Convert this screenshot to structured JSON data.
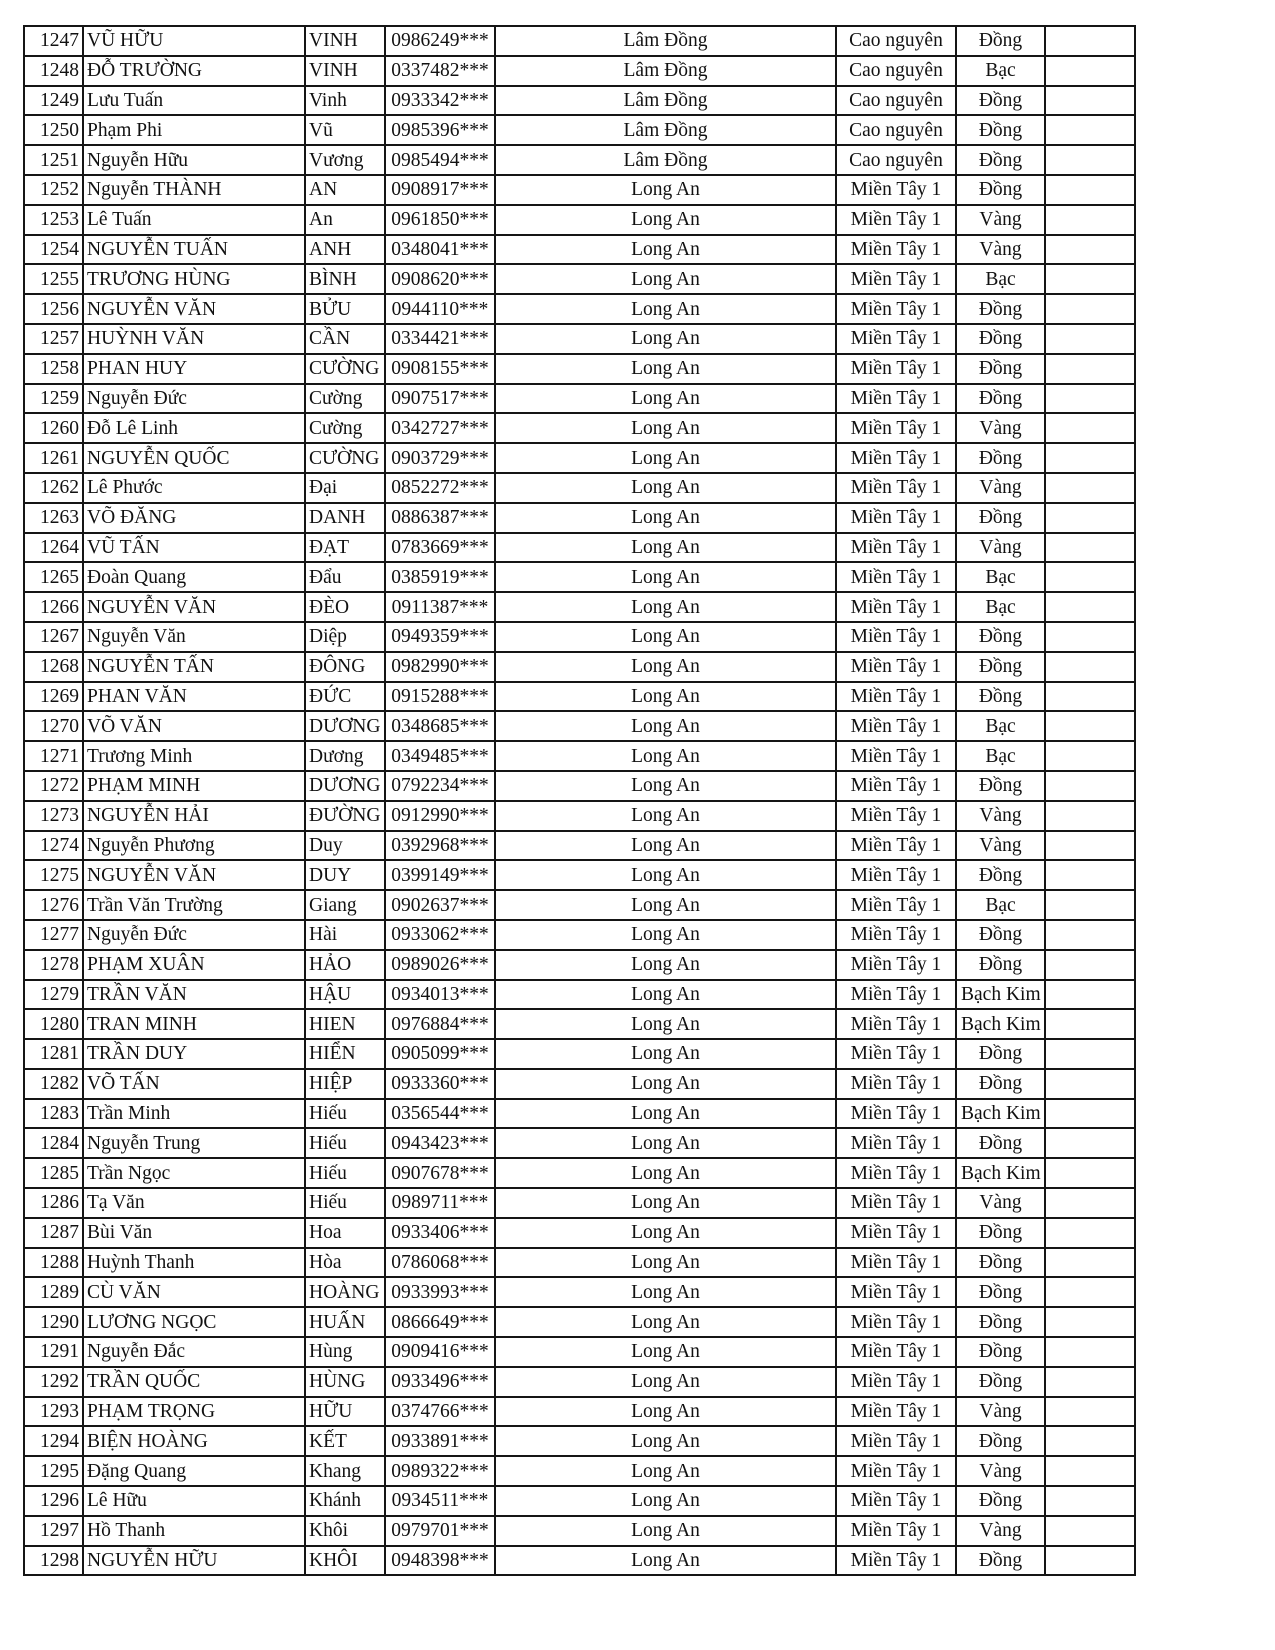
{
  "rows": [
    [
      "1247",
      "VŨ HỮU",
      "VINH",
      "0986249***",
      "Lâm Đồng",
      "Cao nguyên",
      "Đồng",
      ""
    ],
    [
      "1248",
      "ĐỖ TRƯỜNG",
      "VINH",
      "0337482***",
      "Lâm Đồng",
      "Cao nguyên",
      "Bạc",
      ""
    ],
    [
      "1249",
      "Lưu Tuấn",
      "Vinh",
      "0933342***",
      "Lâm Đồng",
      "Cao nguyên",
      "Đồng",
      ""
    ],
    [
      "1250",
      "Phạm Phi",
      "Vũ",
      "0985396***",
      "Lâm Đồng",
      "Cao nguyên",
      "Đồng",
      ""
    ],
    [
      "1251",
      "Nguyễn Hữu",
      "Vương",
      "0985494***",
      "Lâm Đồng",
      "Cao nguyên",
      "Đồng",
      ""
    ],
    [
      "1252",
      "Nguyễn THÀNH",
      "AN",
      "0908917***",
      "Long An",
      "Miền Tây 1",
      "Đồng",
      ""
    ],
    [
      "1253",
      "Lê Tuấn",
      "An",
      "0961850***",
      "Long An",
      "Miền Tây 1",
      "Vàng",
      ""
    ],
    [
      "1254",
      "NGUYỄN TUẤN",
      "ANH",
      "0348041***",
      "Long An",
      "Miền Tây 1",
      "Vàng",
      ""
    ],
    [
      "1255",
      "TRƯƠNG HÙNG",
      "BÌNH",
      "0908620***",
      "Long An",
      "Miền Tây 1",
      "Bạc",
      ""
    ],
    [
      "1256",
      "NGUYỄN VĂN",
      "BỬU",
      "0944110***",
      "Long An",
      "Miền Tây 1",
      "Đồng",
      ""
    ],
    [
      "1257",
      "HUỲNH VĂN",
      "CẦN",
      "0334421***",
      "Long An",
      "Miền Tây 1",
      "Đồng",
      ""
    ],
    [
      "1258",
      "PHAN HUY",
      "CƯỜNG",
      "0908155***",
      "Long An",
      "Miền Tây 1",
      "Đồng",
      ""
    ],
    [
      "1259",
      "Nguyễn Đức",
      "Cường",
      "0907517***",
      "Long An",
      "Miền Tây 1",
      "Đồng",
      ""
    ],
    [
      "1260",
      "Đỗ Lê Linh",
      "Cường",
      "0342727***",
      "Long An",
      "Miền Tây 1",
      "Vàng",
      ""
    ],
    [
      "1261",
      "NGUYỄN QUỐC",
      "CƯỜNG",
      "0903729***",
      "Long An",
      "Miền Tây 1",
      "Đồng",
      ""
    ],
    [
      "1262",
      "Lê Phước",
      "Đại",
      "0852272***",
      "Long An",
      "Miền Tây 1",
      "Vàng",
      ""
    ],
    [
      "1263",
      "VÕ ĐĂNG",
      "DANH",
      "0886387***",
      "Long An",
      "Miền Tây 1",
      "Đồng",
      ""
    ],
    [
      "1264",
      "VŨ TẤN",
      "ĐẠT",
      "0783669***",
      "Long An",
      "Miền Tây 1",
      "Vàng",
      ""
    ],
    [
      "1265",
      "Đoàn Quang",
      "Đẩu",
      "0385919***",
      "Long An",
      "Miền Tây 1",
      "Bạc",
      ""
    ],
    [
      "1266",
      "NGUYỄN VĂN",
      "ĐÈO",
      "0911387***",
      "Long An",
      "Miền Tây 1",
      "Bạc",
      ""
    ],
    [
      "1267",
      "Nguyễn Văn",
      "Diệp",
      "0949359***",
      "Long An",
      "Miền Tây 1",
      "Đồng",
      ""
    ],
    [
      "1268",
      "NGUYỄN TẤN",
      "ĐÔNG",
      "0982990***",
      "Long An",
      "Miền Tây 1",
      "Đồng",
      ""
    ],
    [
      "1269",
      "PHAN VĂN",
      "ĐỨC",
      "0915288***",
      "Long An",
      "Miền Tây 1",
      "Đồng",
      ""
    ],
    [
      "1270",
      "VÕ VĂN",
      "DƯƠNG",
      "0348685***",
      "Long An",
      "Miền Tây 1",
      "Bạc",
      ""
    ],
    [
      "1271",
      "Trương Minh",
      "Dương",
      "0349485***",
      "Long An",
      "Miền Tây 1",
      "Bạc",
      ""
    ],
    [
      "1272",
      "PHẠM MINH",
      "DƯƠNG",
      "0792234***",
      "Long An",
      "Miền Tây 1",
      "Đồng",
      ""
    ],
    [
      "1273",
      "NGUYỄN HẢI",
      "ĐƯỜNG",
      "0912990***",
      "Long An",
      "Miền Tây 1",
      "Vàng",
      ""
    ],
    [
      "1274",
      "Nguyễn Phương",
      "Duy",
      "0392968***",
      "Long An",
      "Miền Tây 1",
      "Vàng",
      ""
    ],
    [
      "1275",
      "NGUYỄN VĂN",
      "DUY",
      "0399149***",
      "Long An",
      "Miền Tây 1",
      "Đồng",
      ""
    ],
    [
      "1276",
      "Trần Văn Trường",
      "Giang",
      "0902637***",
      "Long An",
      "Miền Tây 1",
      "Bạc",
      ""
    ],
    [
      "1277",
      "Nguyễn Đức",
      "Hài",
      "0933062***",
      "Long An",
      "Miền Tây 1",
      "Đồng",
      ""
    ],
    [
      "1278",
      "PHẠM XUÂN",
      "HẢO",
      "0989026***",
      "Long An",
      "Miền Tây 1",
      "Đồng",
      ""
    ],
    [
      "1279",
      "TRẦN VĂN",
      "HẬU",
      "0934013***",
      "Long An",
      "Miền Tây 1",
      "Bạch Kim",
      ""
    ],
    [
      "1280",
      "TRAN MINH",
      "HIEN",
      "0976884***",
      "Long An",
      "Miền Tây 1",
      "Bạch Kim",
      ""
    ],
    [
      "1281",
      "TRẦN DUY",
      "HIỂN",
      "0905099***",
      "Long An",
      "Miền Tây 1",
      "Đồng",
      ""
    ],
    [
      "1282",
      "VÕ TẤN",
      "HIỆP",
      "0933360***",
      "Long An",
      "Miền Tây 1",
      "Đồng",
      ""
    ],
    [
      "1283",
      "Trần Minh",
      "Hiếu",
      "0356544***",
      "Long An",
      "Miền Tây 1",
      "Bạch Kim",
      ""
    ],
    [
      "1284",
      "Nguyễn Trung",
      "Hiếu",
      "0943423***",
      "Long An",
      "Miền Tây 1",
      "Đồng",
      ""
    ],
    [
      "1285",
      "Trần Ngọc",
      "Hiếu",
      "0907678***",
      "Long An",
      "Miền Tây 1",
      "Bạch Kim",
      ""
    ],
    [
      "1286",
      "Tạ Văn",
      "Hiếu",
      "0989711***",
      "Long An",
      "Miền Tây 1",
      "Vàng",
      ""
    ],
    [
      "1287",
      "Bùi Văn",
      "Hoa",
      "0933406***",
      "Long An",
      "Miền Tây 1",
      "Đồng",
      ""
    ],
    [
      "1288",
      "Huỳnh Thanh",
      "Hòa",
      "0786068***",
      "Long An",
      "Miền Tây 1",
      "Đồng",
      ""
    ],
    [
      "1289",
      "CÙ VĂN",
      "HOÀNG",
      "0933993***",
      "Long An",
      "Miền Tây 1",
      "Đồng",
      ""
    ],
    [
      "1290",
      "LƯƠNG NGỌC",
      "HUẤN",
      "0866649***",
      "Long An",
      "Miền Tây 1",
      "Đồng",
      ""
    ],
    [
      "1291",
      "Nguyễn Đắc",
      "Hùng",
      "0909416***",
      "Long An",
      "Miền Tây 1",
      "Đồng",
      ""
    ],
    [
      "1292",
      "TRẦN QUỐC",
      "HÙNG",
      "0933496***",
      "Long An",
      "Miền Tây 1",
      "Đồng",
      ""
    ],
    [
      "1293",
      "PHẠM TRỌNG",
      "HỮU",
      "0374766***",
      "Long An",
      "Miền Tây 1",
      "Vàng",
      ""
    ],
    [
      "1294",
      "BIỆN HOÀNG",
      "KẾT",
      "0933891***",
      "Long An",
      "Miền Tây 1",
      "Đồng",
      ""
    ],
    [
      "1295",
      "Đặng Quang",
      "Khang",
      "0989322***",
      "Long An",
      "Miền Tây 1",
      "Vàng",
      ""
    ],
    [
      "1296",
      "Lê Hữu",
      "Khánh",
      "0934511***",
      "Long An",
      "Miền Tây 1",
      "Đồng",
      ""
    ],
    [
      "1297",
      "Hồ Thanh",
      "Khôi",
      "0979701***",
      "Long An",
      "Miền Tây 1",
      "Vàng",
      ""
    ],
    [
      "1298",
      "NGUYỄN HỮU",
      "KHÔI",
      "0948398***",
      "Long An",
      "Miền Tây 1",
      "Đồng",
      ""
    ]
  ]
}
